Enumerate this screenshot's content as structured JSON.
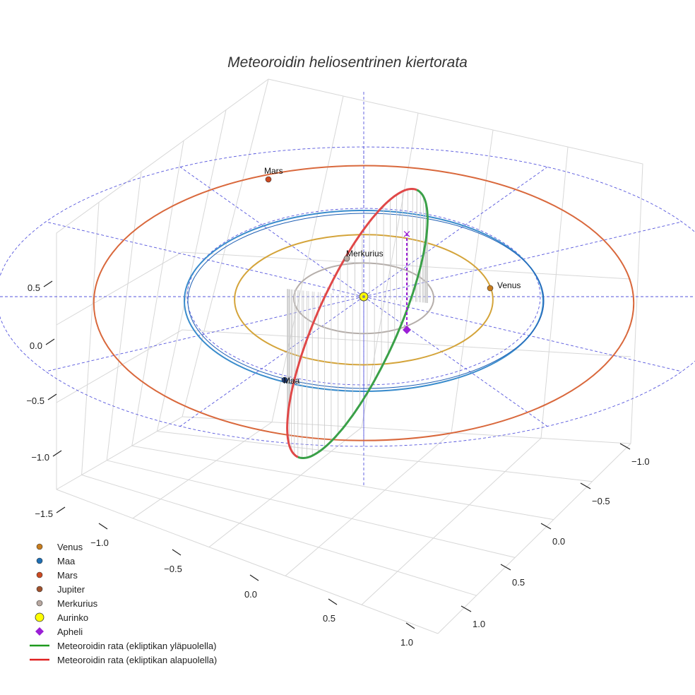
{
  "chart_data": {
    "type": "scatter",
    "title": "Meteoroidin heliosentrinen kiertorata",
    "axes": {
      "x": {
        "ticks": [
          -1.0,
          -0.5,
          0.0,
          0.5,
          1.0
        ],
        "tick_labels": [
          "−1.0",
          "−0.5",
          "0.0",
          "0.5",
          "1.0"
        ]
      },
      "y": {
        "ticks": [
          -1.0,
          -0.5,
          0.0,
          0.5,
          1.0
        ],
        "tick_labels": [
          "−1.0",
          "−0.5",
          "0.0",
          "0.5",
          "1.0"
        ]
      },
      "z": {
        "ticks": [
          -1.5,
          -1.0,
          -0.5,
          0.0,
          0.5
        ],
        "tick_labels": [
          "−1.5",
          "−1.0",
          "−0.5",
          "0.0",
          "0.5"
        ]
      }
    },
    "grid": true,
    "planet_orbits": [
      {
        "name": "Merkurius",
        "radius_au": 0.39,
        "color": "#b5aeaa"
      },
      {
        "name": "Venus",
        "radius_au": 0.72,
        "color": "#d4a43a"
      },
      {
        "name": "Maa",
        "radius_au": 1.0,
        "color": "#3a8ccc"
      },
      {
        "name": "Mars",
        "radius_au": 1.52,
        "color": "#d9683c"
      }
    ],
    "point_labels": [
      {
        "name": "Mars",
        "text": "Mars"
      },
      {
        "name": "Merkurius",
        "text": "Merkurius"
      },
      {
        "name": "Venus",
        "text": "Venus"
      },
      {
        "name": "Maa",
        "text": "Maa"
      }
    ],
    "meteoroid": {
      "aphelion_distance_au": 1.5,
      "perihelion_distance_au": 0.1,
      "upper_color": "#3aa048",
      "lower_color": "#e04848"
    },
    "legend": {
      "placement": "bottom-left",
      "items": [
        {
          "label": "Venus",
          "marker": "circle",
          "color": "#c87d1e"
        },
        {
          "label": "Maa",
          "marker": "circle",
          "color": "#1f6fb4"
        },
        {
          "label": "Mars",
          "marker": "circle",
          "color": "#cc4a22"
        },
        {
          "label": "Jupiter",
          "marker": "circle",
          "color": "#a0522d"
        },
        {
          "label": "Merkurius",
          "marker": "circle",
          "color": "#b8a8a0"
        },
        {
          "label": "Aurinko",
          "marker": "sun",
          "color": "#ffff00"
        },
        {
          "label": "Apheli",
          "marker": "diamond",
          "color": "#9b1fd6"
        },
        {
          "label": "Meteoroidin rata (ekliptikan yläpuolella)",
          "marker": "line",
          "color": "#1e9a1e"
        },
        {
          "label": "Meteoroidin rata (ekliptikan alapuolella)",
          "marker": "line",
          "color": "#e02020"
        }
      ]
    }
  }
}
